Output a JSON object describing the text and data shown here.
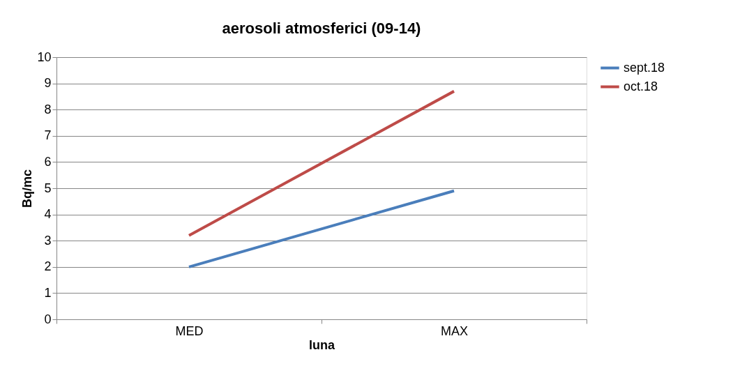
{
  "chart_data": {
    "type": "line",
    "title": "aerosoli atmosferici (09-14)",
    "xlabel": "luna",
    "ylabel": "Bq/mc",
    "categories": [
      "MED",
      "MAX"
    ],
    "series": [
      {
        "name": "sept.18",
        "color": "#4a7ebb",
        "values": [
          2.0,
          4.9
        ]
      },
      {
        "name": "oct.18",
        "color": "#be4b48",
        "values": [
          3.2,
          8.7
        ]
      }
    ],
    "ylim": [
      0,
      10
    ],
    "yticks": [
      0,
      1,
      2,
      3,
      4,
      5,
      6,
      7,
      8,
      9,
      10
    ],
    "grid": "y",
    "legend": "right",
    "marker": "none",
    "line_style": "solid"
  }
}
